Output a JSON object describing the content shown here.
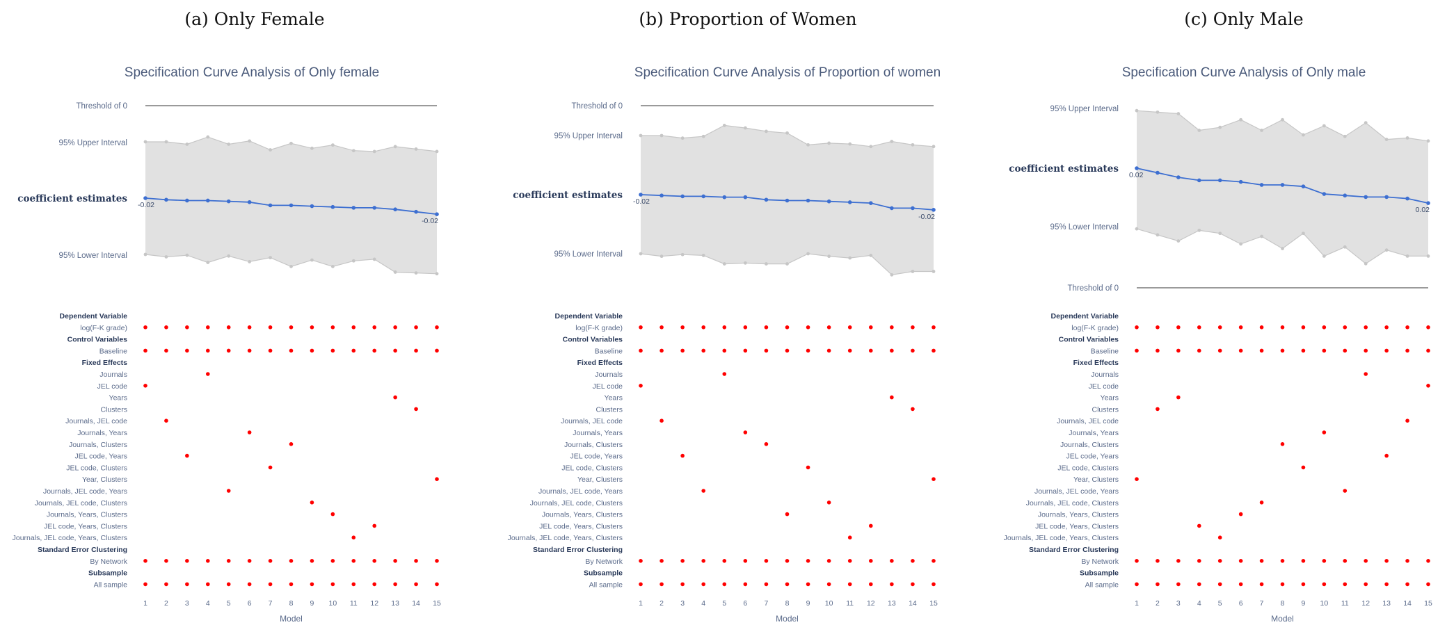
{
  "panels": [
    {
      "caption": "(a) Only Female",
      "title": "Specification Curve Analysis of Only female",
      "threshold_label": "Threshold of 0",
      "upper_label": "95% Upper Interval",
      "lower_label": "95% Lower Interval",
      "coef_label": "coefficient estimates",
      "start_label": "-0.02",
      "end_label": "-0.02",
      "xlabel": "Model"
    },
    {
      "caption": "(b) Proportion of Women",
      "title": "Specification Curve Analysis of Proportion of women",
      "threshold_label": "Threshold of 0",
      "upper_label": "95% Upper Interval",
      "lower_label": "95% Lower Interval",
      "coef_label": "coefficient estimates",
      "start_label": "-0.02",
      "end_label": "-0.02",
      "xlabel": "Model"
    },
    {
      "caption": "(c) Only Male",
      "title": "Specification Curve Analysis of Only male",
      "threshold_label": "Threshold of 0",
      "upper_label": "95% Upper Interval",
      "lower_label": "95% Lower Interval",
      "coef_label": "coefficient estimates",
      "start_label": "0.02",
      "end_label": "0.02",
      "xlabel": "Model"
    }
  ],
  "rows": [
    {
      "label": "Dependent Variable",
      "header": true
    },
    {
      "label": "log(F-K grade)",
      "header": false
    },
    {
      "label": "Control Variables",
      "header": true
    },
    {
      "label": "Baseline",
      "header": false
    },
    {
      "label": "Fixed Effects",
      "header": true
    },
    {
      "label": "Journals",
      "header": false
    },
    {
      "label": "JEL code",
      "header": false
    },
    {
      "label": "Years",
      "header": false
    },
    {
      "label": "Clusters",
      "header": false
    },
    {
      "label": "Journals, JEL code",
      "header": false
    },
    {
      "label": "Journals, Years",
      "header": false
    },
    {
      "label": "Journals, Clusters",
      "header": false
    },
    {
      "label": "JEL code, Years",
      "header": false
    },
    {
      "label": "JEL code, Clusters",
      "header": false
    },
    {
      "label": "Year, Clusters",
      "header": false
    },
    {
      "label": "Journals, JEL code, Years",
      "header": false
    },
    {
      "label": "Journals, JEL code, Clusters",
      "header": false
    },
    {
      "label": "Journals, Years, Clusters",
      "header": false
    },
    {
      "label": "JEL code, Years, Clusters",
      "header": false
    },
    {
      "label": "Journals, JEL code, Years, Clusters",
      "header": false
    },
    {
      "label": "Standard Error Clustering",
      "header": true
    },
    {
      "label": "By Network",
      "header": false
    },
    {
      "label": "Subsample",
      "header": true
    },
    {
      "label": "All sample",
      "header": false
    }
  ],
  "x_ticks": [
    "1",
    "2",
    "3",
    "4",
    "5",
    "6",
    "7",
    "8",
    "9",
    "10",
    "11",
    "12",
    "13",
    "14",
    "15"
  ],
  "colors": {
    "band": "#e1e1e1",
    "band_edge": "#c6c6c6",
    "line": "#3d6fd1",
    "threshold": "#9a9a9a",
    "dot": "#ff0000"
  },
  "chart_data": [
    {
      "type": "line",
      "title": "Specification Curve Analysis of Only female",
      "xlabel": "Model",
      "x": [
        1,
        2,
        3,
        4,
        5,
        6,
        7,
        8,
        9,
        10,
        11,
        12,
        13,
        14,
        15
      ],
      "threshold": 0,
      "series": [
        {
          "name": "coefficient estimates",
          "values": [
            -0.02,
            -0.0202,
            -0.0203,
            -0.0203,
            -0.0204,
            -0.0205,
            -0.0209,
            -0.0209,
            -0.021,
            -0.0211,
            -0.0212,
            -0.0212,
            -0.0214,
            -0.0217,
            -0.022
          ]
        },
        {
          "name": "95% Upper Interval",
          "values": [
            -0.013,
            -0.013,
            -0.0133,
            -0.0124,
            -0.0133,
            -0.0129,
            -0.014,
            -0.0132,
            -0.0138,
            -0.0134,
            -0.0141,
            -0.0142,
            -0.0136,
            -0.0139,
            -0.0142
          ]
        },
        {
          "name": "95% Lower Interval",
          "values": [
            -0.027,
            -0.0273,
            -0.0271,
            -0.028,
            -0.0272,
            -0.0279,
            -0.0274,
            -0.0285,
            -0.0277,
            -0.0285,
            -0.0278,
            -0.0276,
            -0.0292,
            -0.0293,
            -0.0294
          ]
        }
      ],
      "specs": {
        "Journals": [
          4
        ],
        "JEL code": [
          1
        ],
        "Years": [
          13
        ],
        "Clusters": [
          14
        ],
        "Journals, JEL code": [
          2
        ],
        "Journals, Years": [
          6
        ],
        "Journals, Clusters": [
          8
        ],
        "JEL code, Years": [
          3
        ],
        "JEL code, Clusters": [
          7
        ],
        "Year, Clusters": [
          15
        ],
        "Journals, JEL code, Years": [
          5
        ],
        "Journals, JEL code, Clusters": [
          9
        ],
        "Journals, Years, Clusters": [
          10
        ],
        "JEL code, Years, Clusters": [
          12
        ],
        "Journals, JEL code, Years, Clusters": [
          11
        ]
      }
    },
    {
      "type": "line",
      "title": "Specification Curve Analysis of Proportion of women",
      "xlabel": "Model",
      "x": [
        1,
        2,
        3,
        4,
        5,
        6,
        7,
        8,
        9,
        10,
        11,
        12,
        13,
        14,
        15
      ],
      "threshold": 0,
      "series": [
        {
          "name": "coefficient estimates",
          "values": [
            -0.02,
            -0.0201,
            -0.0202,
            -0.0202,
            -0.0203,
            -0.0203,
            -0.0206,
            -0.0207,
            -0.0207,
            -0.0208,
            -0.0209,
            -0.021,
            -0.0216,
            -0.0216,
            -0.0218
          ]
        },
        {
          "name": "95% Upper Interval",
          "values": [
            -0.013,
            -0.013,
            -0.0133,
            -0.0131,
            -0.0118,
            -0.0121,
            -0.0125,
            -0.0127,
            -0.0141,
            -0.0139,
            -0.014,
            -0.0143,
            -0.0137,
            -0.0141,
            -0.0143
          ]
        },
        {
          "name": "95% Lower Interval",
          "values": [
            -0.027,
            -0.0273,
            -0.0271,
            -0.0272,
            -0.0282,
            -0.0281,
            -0.0282,
            -0.0282,
            -0.027,
            -0.0273,
            -0.0275,
            -0.0272,
            -0.0295,
            -0.0291,
            -0.0291
          ]
        }
      ],
      "specs": {
        "Journals": [
          5
        ],
        "JEL code": [
          1
        ],
        "Years": [
          13
        ],
        "Clusters": [
          14
        ],
        "Journals, JEL code": [
          2
        ],
        "Journals, Years": [
          6
        ],
        "Journals, Clusters": [
          7
        ],
        "JEL code, Years": [
          3
        ],
        "JEL code, Clusters": [
          9
        ],
        "Year, Clusters": [
          15
        ],
        "Journals, JEL code, Years": [
          4
        ],
        "Journals, JEL code, Clusters": [
          10
        ],
        "Journals, Years, Clusters": [
          8
        ],
        "JEL code, Years, Clusters": [
          12
        ],
        "Journals, JEL code, Years, Clusters": [
          11
        ]
      }
    },
    {
      "type": "line",
      "title": "Specification Curve Analysis of Only male",
      "xlabel": "Model",
      "x": [
        1,
        2,
        3,
        4,
        5,
        6,
        7,
        8,
        9,
        10,
        11,
        12,
        13,
        14,
        15
      ],
      "threshold": 0,
      "series": [
        {
          "name": "coefficient estimates",
          "values": [
            0.02,
            0.0197,
            0.0194,
            0.0192,
            0.0192,
            0.0191,
            0.0189,
            0.0189,
            0.0188,
            0.0183,
            0.0182,
            0.0181,
            0.0181,
            0.018,
            0.0177
          ]
        },
        {
          "name": "95% Upper Interval",
          "values": [
            0.0238,
            0.0237,
            0.0236,
            0.0225,
            0.0227,
            0.0232,
            0.0225,
            0.0232,
            0.0222,
            0.0228,
            0.0221,
            0.023,
            0.0219,
            0.022,
            0.0218
          ]
        },
        {
          "name": "95% Lower Interval",
          "values": [
            0.016,
            0.0156,
            0.0152,
            0.0159,
            0.0157,
            0.015,
            0.0155,
            0.0147,
            0.0157,
            0.0142,
            0.0148,
            0.0137,
            0.0146,
            0.0142,
            0.0142
          ]
        }
      ],
      "specs": {
        "Journals": [
          12
        ],
        "JEL code": [
          15
        ],
        "Years": [
          3
        ],
        "Clusters": [
          2
        ],
        "Journals, JEL code": [
          14
        ],
        "Journals, Years": [
          10
        ],
        "Journals, Clusters": [
          8
        ],
        "JEL code, Years": [
          13
        ],
        "JEL code, Clusters": [
          9
        ],
        "Year, Clusters": [
          1
        ],
        "Journals, JEL code, Years": [
          11
        ],
        "Journals, JEL code, Clusters": [
          7
        ],
        "Journals, Years, Clusters": [
          6
        ],
        "JEL code, Years, Clusters": [
          4
        ],
        "Journals, JEL code, Years, Clusters": [
          5
        ]
      }
    }
  ]
}
